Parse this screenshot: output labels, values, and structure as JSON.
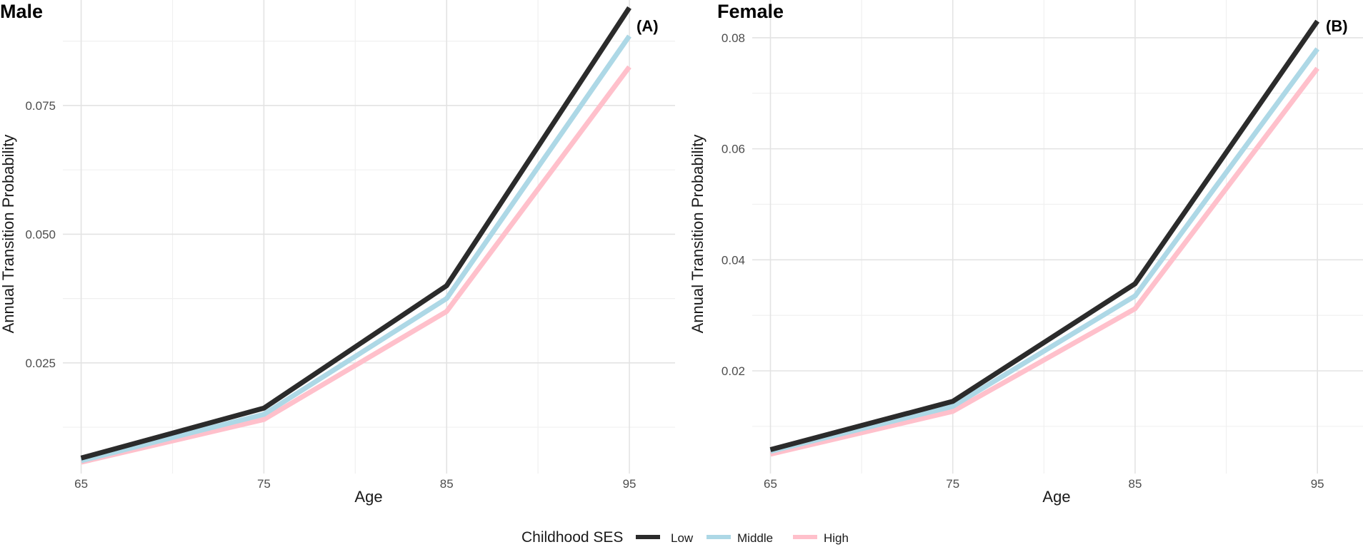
{
  "legend": {
    "title": "Childhood SES",
    "items": [
      {
        "label": "Low",
        "color": "#2b2b2b"
      },
      {
        "label": "Middle",
        "color": "#add8e6"
      },
      {
        "label": "High",
        "color": "#ffc0cb"
      }
    ]
  },
  "chart_data": [
    {
      "type": "line",
      "title": "Male",
      "tag": "(A)",
      "xlabel": "Age",
      "ylabel": "Annual Transition Probability",
      "x": [
        65,
        75,
        85,
        95
      ],
      "xlim": [
        64,
        97.5
      ],
      "ylim": [
        0.0035,
        0.0955
      ],
      "xticks": [
        65,
        75,
        85,
        95
      ],
      "xtick_labels": [
        "65",
        "75",
        "85",
        "95"
      ],
      "yticks": [
        0.025,
        0.05,
        0.075
      ],
      "ytick_labels": [
        "0.025",
        "0.050",
        "0.075"
      ],
      "series": [
        {
          "name": "Low",
          "color": "#2b2b2b",
          "values": [
            0.0065,
            0.0162,
            0.04,
            0.094
          ]
        },
        {
          "name": "Middle",
          "color": "#add8e6",
          "values": [
            0.006,
            0.015,
            0.0375,
            0.0885
          ]
        },
        {
          "name": "High",
          "color": "#ffc0cb",
          "values": [
            0.0057,
            0.014,
            0.035,
            0.0825
          ]
        }
      ]
    },
    {
      "type": "line",
      "title": "Female",
      "tag": "(B)",
      "xlabel": "Age",
      "ylabel": "Annual Transition Probability",
      "x": [
        65,
        75,
        85,
        95
      ],
      "xlim": [
        64,
        97.5
      ],
      "ylim": [
        0.0015,
        0.0868
      ],
      "xticks": [
        65,
        75,
        85,
        95
      ],
      "xtick_labels": [
        "65",
        "75",
        "85",
        "95"
      ],
      "yticks": [
        0.02,
        0.04,
        0.06,
        0.08
      ],
      "ytick_labels": [
        "0.02",
        "0.04",
        "0.06",
        "0.08"
      ],
      "series": [
        {
          "name": "Low",
          "color": "#2b2b2b",
          "values": [
            0.0058,
            0.0145,
            0.0357,
            0.083
          ]
        },
        {
          "name": "Middle",
          "color": "#add8e6",
          "values": [
            0.0055,
            0.0136,
            0.0335,
            0.078
          ]
        },
        {
          "name": "High",
          "color": "#ffc0cb",
          "values": [
            0.005,
            0.0127,
            0.0312,
            0.0745
          ]
        }
      ]
    }
  ]
}
